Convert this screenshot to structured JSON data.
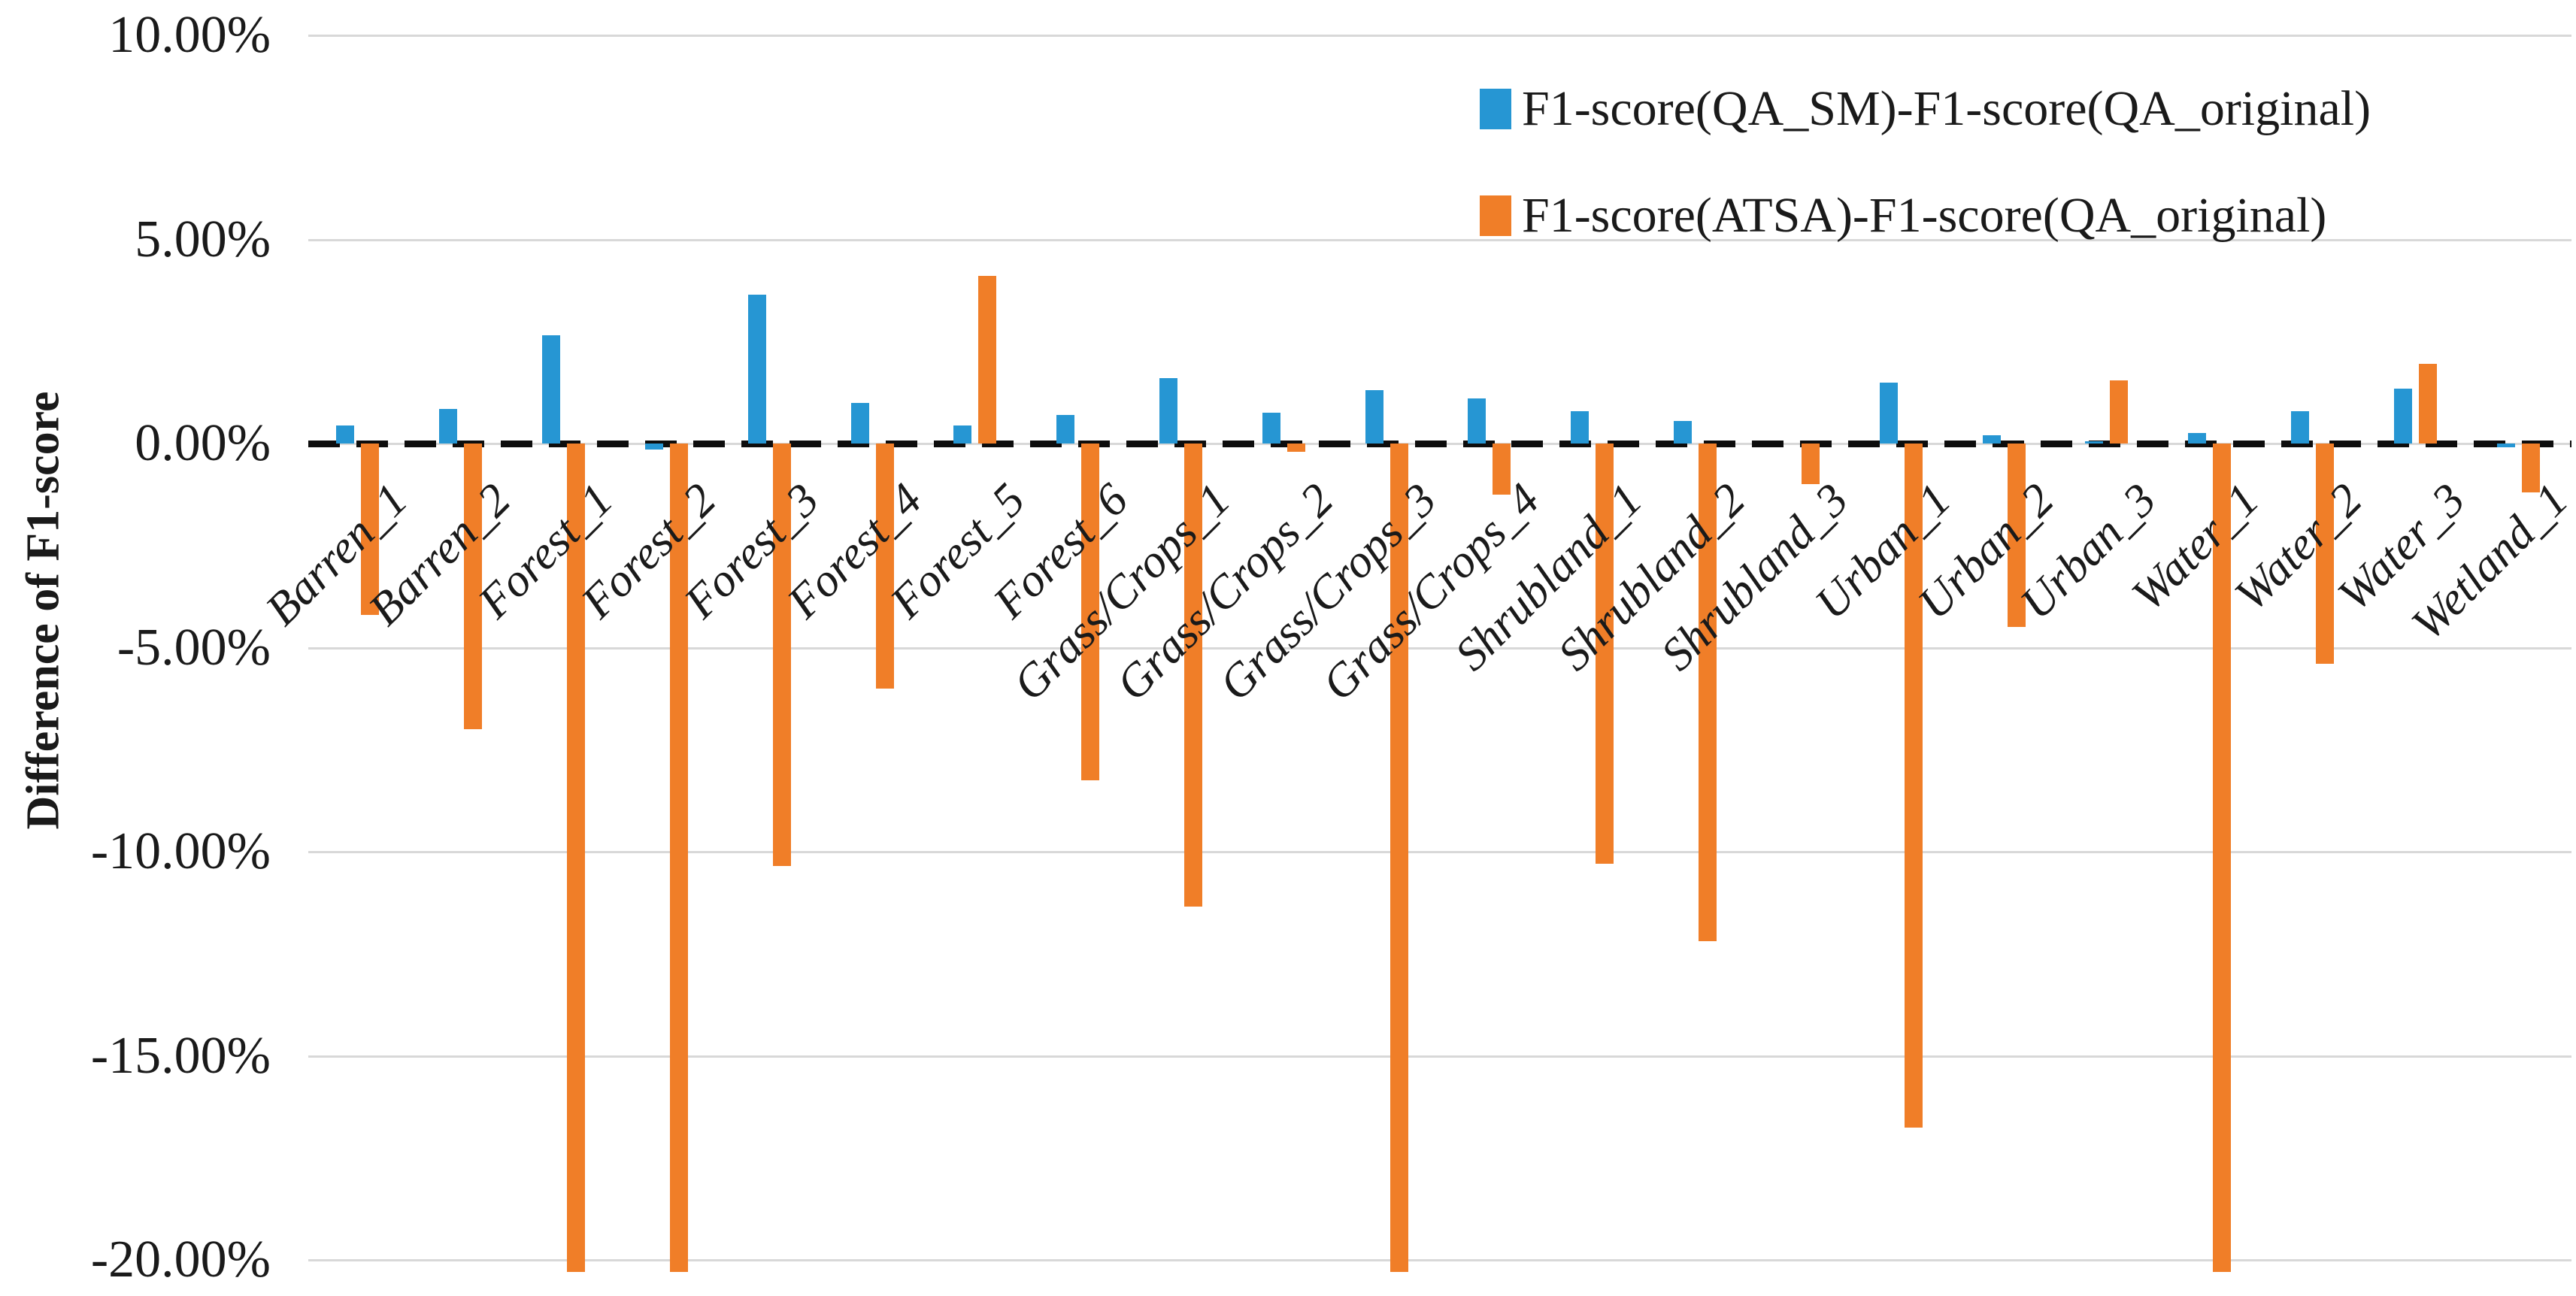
{
  "chart_data": {
    "type": "bar",
    "title": "",
    "xlabel": "",
    "ylabel": "Difference of F1-score",
    "categories": [
      "Barren_1",
      "Barren_2",
      "Forest_1",
      "Forest_2",
      "Forest_3",
      "Forest_4",
      "Forest_5",
      "Forest_6",
      "Grass/Crops_1",
      "Grass/Crops_2",
      "Grass/Crops_3",
      "Grass/Crops_4",
      "Shrubland_1",
      "Shrubland_2",
      "Shrubland_3",
      "Urban_1",
      "Urban_2",
      "Urban_3",
      "Water_1",
      "Water_2",
      "Water_3",
      "Wetland_1"
    ],
    "series": [
      {
        "name": "F1-score(QA_SM)-F1-score(QA_original)",
        "color": "#2696d3",
        "values": [
          0.45,
          0.85,
          2.65,
          -0.15,
          3.65,
          1.0,
          0.45,
          0.7,
          1.6,
          0.75,
          1.3,
          1.1,
          0.8,
          0.55,
          0.0,
          1.5,
          0.2,
          0.05,
          0.25,
          0.8,
          1.35,
          -0.1
        ]
      },
      {
        "name": "F1-score(ATSA)-F1-score(QA_original)",
        "color": "#f07e28",
        "values": [
          -4.2,
          -7.0,
          -20.3,
          -20.3,
          -10.35,
          -6.0,
          4.1,
          -8.25,
          -11.35,
          -0.2,
          -20.3,
          -1.25,
          -10.3,
          -12.2,
          -1.0,
          -16.75,
          -4.5,
          1.55,
          -20.3,
          -5.4,
          1.95,
          -1.2
        ]
      }
    ],
    "y_ticks": [
      "10.00%",
      "5.00%",
      "0.00%",
      "-5.00%",
      "-10.00%",
      "-15.00%",
      "-20.00%"
    ],
    "y_tick_values": [
      10,
      5,
      0,
      -5,
      -10,
      -15,
      -20
    ],
    "ylim": [
      -20,
      10
    ],
    "units": "percent",
    "grid": "horizontal-light-gray",
    "zero_line": "black-dashed",
    "legend_position": "top-right",
    "note": "Orange bars for Forest_1, Forest_2, Grass/Crops_3 and Water_1 extend below the -20.00% axis minimum and are clipped at the bottom of the plot."
  }
}
